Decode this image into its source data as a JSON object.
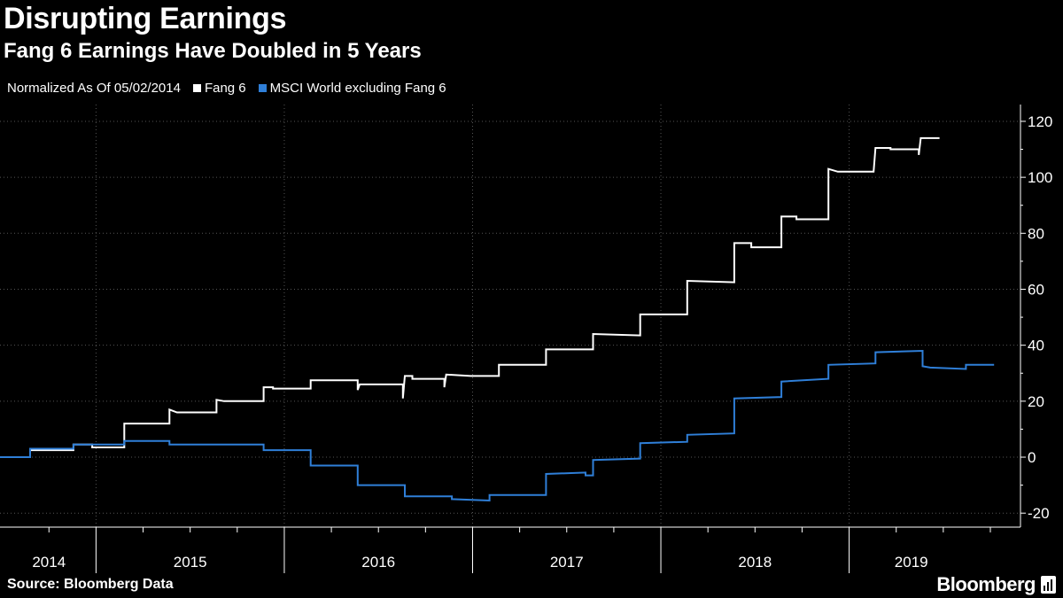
{
  "header": {
    "title": "Disrupting Earnings",
    "subtitle": "Fang 6 Earnings Have Doubled in 5 Years"
  },
  "legend": {
    "note": "Normalized As Of 05/02/2014",
    "items": [
      {
        "label": "Fang 6",
        "color": "#ffffff"
      },
      {
        "label": "MSCI World excluding Fang 6",
        "color": "#2f7fd8"
      }
    ]
  },
  "footer": {
    "source": "Source: Bloomberg Data",
    "brand": "Bloomberg"
  },
  "chart_data": {
    "type": "line",
    "title": "Fang 6 Earnings Have Doubled in 5 Years",
    "xlabel": "",
    "ylabel": "",
    "ylim": [
      -25,
      126
    ],
    "xlim": [
      2013.82,
      2019.24
    ],
    "yticks": [
      -20,
      0,
      20,
      40,
      60,
      80,
      100,
      120
    ],
    "ytick_labels": [
      "-20",
      "0",
      "20",
      "40",
      "60",
      "80",
      "100",
      "120"
    ],
    "xtick_labels": [
      {
        "label": "2014",
        "x": 2014.08
      },
      {
        "label": "2015",
        "x": 2014.83
      },
      {
        "label": "2016",
        "x": 2015.83
      },
      {
        "label": "2017",
        "x": 2016.83
      },
      {
        "label": "2018",
        "x": 2017.83
      },
      {
        "label": "2019",
        "x": 2018.66
      }
    ],
    "year_boundaries": [
      2014.33,
      2015.33,
      2016.33,
      2017.33,
      2018.33
    ],
    "quarter_ticks": [
      2014.08,
      2014.58,
      2014.83,
      2015.08,
      2015.58,
      2015.83,
      2016.08,
      2016.58,
      2016.83,
      2017.08,
      2017.58,
      2017.83,
      2018.08,
      2018.58,
      2018.83,
      2019.08
    ],
    "grid": true,
    "legend_position": "top-left",
    "series": [
      {
        "name": "Fang 6",
        "color": "#ffffff",
        "points": [
          [
            2013.82,
            0
          ],
          [
            2013.98,
            0
          ],
          [
            2013.98,
            2.5
          ],
          [
            2014.21,
            2.5
          ],
          [
            2014.21,
            4.5
          ],
          [
            2014.31,
            4.5
          ],
          [
            2014.31,
            3.5
          ],
          [
            2014.48,
            3.5
          ],
          [
            2014.48,
            12
          ],
          [
            2014.72,
            12
          ],
          [
            2014.72,
            17
          ],
          [
            2014.76,
            16
          ],
          [
            2014.97,
            16
          ],
          [
            2014.97,
            20.5
          ],
          [
            2015.01,
            20
          ],
          [
            2015.22,
            20
          ],
          [
            2015.22,
            25
          ],
          [
            2015.27,
            25
          ],
          [
            2015.27,
            24.5
          ],
          [
            2015.47,
            24.5
          ],
          [
            2015.47,
            27.5
          ],
          [
            2015.72,
            27.5
          ],
          [
            2015.72,
            24
          ],
          [
            2015.73,
            26
          ],
          [
            2015.96,
            26
          ],
          [
            2015.96,
            21
          ],
          [
            2015.97,
            29
          ],
          [
            2016.01,
            29
          ],
          [
            2016.01,
            28
          ],
          [
            2016.18,
            28
          ],
          [
            2016.18,
            25
          ],
          [
            2016.19,
            29.5
          ],
          [
            2016.32,
            29
          ],
          [
            2016.47,
            29
          ],
          [
            2016.47,
            33
          ],
          [
            2016.72,
            33
          ],
          [
            2016.72,
            38.5
          ],
          [
            2016.97,
            38.5
          ],
          [
            2016.97,
            44
          ],
          [
            2017.22,
            43.5
          ],
          [
            2017.22,
            51
          ],
          [
            2017.47,
            51
          ],
          [
            2017.47,
            63
          ],
          [
            2017.72,
            62.5
          ],
          [
            2017.72,
            76.5
          ],
          [
            2017.81,
            76.5
          ],
          [
            2017.81,
            75
          ],
          [
            2017.97,
            75
          ],
          [
            2017.97,
            86
          ],
          [
            2018.05,
            86
          ],
          [
            2018.05,
            85
          ],
          [
            2018.22,
            85
          ],
          [
            2018.22,
            103
          ],
          [
            2018.27,
            102
          ],
          [
            2018.46,
            102
          ],
          [
            2018.47,
            110.5
          ],
          [
            2018.55,
            110.5
          ],
          [
            2018.55,
            110
          ],
          [
            2018.7,
            110
          ],
          [
            2018.7,
            108
          ],
          [
            2018.71,
            114
          ],
          [
            2018.78,
            114
          ],
          [
            2018.81,
            114
          ]
        ]
      },
      {
        "name": "MSCI World excluding Fang 6",
        "color": "#2f7fd8",
        "points": [
          [
            2013.82,
            0
          ],
          [
            2013.98,
            0
          ],
          [
            2013.98,
            3
          ],
          [
            2014.21,
            3
          ],
          [
            2014.21,
            4.5
          ],
          [
            2014.48,
            4.5
          ],
          [
            2014.48,
            5.8
          ],
          [
            2014.72,
            5.8
          ],
          [
            2014.72,
            4.5
          ],
          [
            2015.22,
            4.5
          ],
          [
            2015.22,
            2.5
          ],
          [
            2015.47,
            2.5
          ],
          [
            2015.47,
            -3
          ],
          [
            2015.72,
            -3
          ],
          [
            2015.72,
            -10
          ],
          [
            2015.97,
            -10
          ],
          [
            2015.97,
            -14
          ],
          [
            2016.22,
            -14
          ],
          [
            2016.22,
            -15
          ],
          [
            2016.42,
            -15.5
          ],
          [
            2016.42,
            -13.5
          ],
          [
            2016.72,
            -13.5
          ],
          [
            2016.72,
            -6
          ],
          [
            2016.93,
            -5.5
          ],
          [
            2016.93,
            -6.5
          ],
          [
            2016.97,
            -6.5
          ],
          [
            2016.97,
            -1
          ],
          [
            2017.22,
            -0.5
          ],
          [
            2017.22,
            5
          ],
          [
            2017.47,
            5.5
          ],
          [
            2017.47,
            8
          ],
          [
            2017.72,
            8.5
          ],
          [
            2017.72,
            21
          ],
          [
            2017.97,
            21.5
          ],
          [
            2017.97,
            27
          ],
          [
            2018.22,
            28
          ],
          [
            2018.22,
            33
          ],
          [
            2018.47,
            33.5
          ],
          [
            2018.47,
            37.5
          ],
          [
            2018.72,
            38
          ],
          [
            2018.72,
            32.5
          ],
          [
            2018.76,
            32
          ],
          [
            2018.95,
            31.5
          ],
          [
            2018.95,
            33
          ],
          [
            2019.1,
            33
          ]
        ]
      }
    ]
  }
}
